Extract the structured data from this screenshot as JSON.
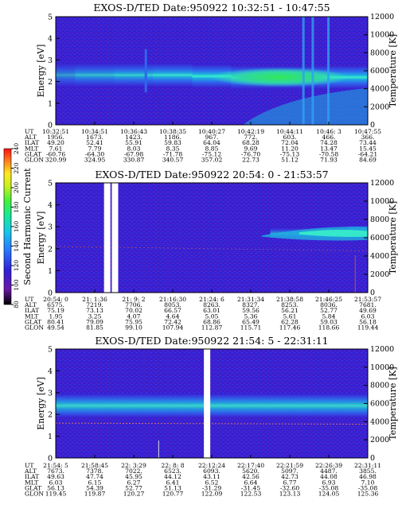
{
  "colors": {
    "background": "#3a1fd0",
    "band_core": "#38f0c8",
    "band_mid": "#1fb0e0",
    "band_outer": "#2f66ee",
    "hot_green": "#31e85a",
    "gap": "#ffffff"
  },
  "colorbar": {
    "label": "Second Harmonic Current",
    "ticks": [
      "80",
      "100",
      "120",
      "140",
      "160",
      "180",
      "200",
      "220",
      "240"
    ],
    "colors": [
      "#000000",
      "#6a1aa8",
      "#3020d8",
      "#2878ff",
      "#18c8e8",
      "#18e898",
      "#40f040",
      "#c8f020",
      "#ffe820",
      "#ff8020",
      "#ff1010"
    ]
  },
  "panels": [
    {
      "title": "EXOS-D/TED   Date:950922  10:32:51 - 10:47:55",
      "ylabel_left": "Energy [eV]",
      "ylabel_right": "Temperature [K]",
      "left_ticks": [
        "0",
        "1",
        "2",
        "3",
        "4",
        "5"
      ],
      "right_ticks": [
        "0",
        "2000",
        "4000",
        "6000",
        "8000",
        "10000",
        "12000"
      ],
      "gaps": [],
      "rows": [
        {
          "label": "UT",
          "values": [
            "10:32:51",
            "10:34:51",
            "10:36:43",
            "10:38:35",
            "10:40:27",
            "10:42:19",
            "10:44:11",
            "10:46: 3",
            "10:47:55"
          ]
        },
        {
          "label": "ALT",
          "values": [
            "1956.",
            "1673.",
            "1423.",
            "1186.",
            "967.",
            "772.",
            "603.",
            "466.",
            "366."
          ]
        },
        {
          "label": "ILAT",
          "values": [
            "49.20",
            "52.41",
            "55.91",
            "59.83",
            "64.04",
            "68.28",
            "72.04",
            "74.28",
            "73.44"
          ]
        },
        {
          "label": "MLT",
          "values": [
            "7.61",
            "7.79",
            "8.03",
            "8.35",
            "8.85",
            "9.69",
            "11.20",
            "13.47",
            "15.45"
          ]
        },
        {
          "label": "GLAT",
          "values": [
            "-60.76",
            "-64.30",
            "-67.98",
            "-71.78",
            "-75.12",
            "-76.70",
            "-75.13",
            "-70.58",
            "-64.21"
          ]
        },
        {
          "label": "GLON",
          "values": [
            "320.99",
            "324.95",
            "330.87",
            "340.57",
            "357.02",
            "22.73",
            "51.12",
            "71.93",
            "84.69"
          ]
        }
      ]
    },
    {
      "title": "EXOS-D/TED   Date:950922  20:54: 0 - 21:53:57",
      "ylabel_left": "Energy [eV]",
      "ylabel_right": "Temperature [K]",
      "left_ticks": [
        "0",
        "1",
        "2",
        "3",
        "4",
        "5"
      ],
      "right_ticks": [
        "0",
        "2000",
        "4000",
        "6000",
        "8000",
        "10000",
        "12000"
      ],
      "gaps": [
        0.165,
        0.19
      ],
      "rows": [
        {
          "label": "UT",
          "values": [
            "20:54: 0",
            "21: 1:36",
            "21: 9: 2",
            "21:16:30",
            "21:24: 6",
            "21:31:34",
            "21:38:58",
            "21:46:25",
            "21:53:57"
          ]
        },
        {
          "label": "ALT",
          "values": [
            "6575.",
            "7219.",
            "7706.",
            "8053.",
            "8263.",
            "8327.",
            "8253.",
            "8036.",
            "7681."
          ]
        },
        {
          "label": "ILAT",
          "values": [
            "75.19",
            "73.13",
            "70.02",
            "66.57",
            "63.01",
            "59.56",
            "56.21",
            "52.77",
            "49.69"
          ]
        },
        {
          "label": "MLT",
          "values": [
            "1.95",
            "3.25",
            "4.07",
            "4.64",
            "5.05",
            "5.36",
            "5.61",
            "5.84",
            "6.03"
          ]
        },
        {
          "label": "GLAT",
          "values": [
            "80.41",
            "79.09",
            "75.95",
            "72.42",
            "68.86",
            "65.49",
            "62.28",
            "59.03",
            "56.18"
          ]
        },
        {
          "label": "GLON",
          "values": [
            "49.54",
            "81.85",
            "99.10",
            "107.94",
            "112.87",
            "115.71",
            "117.46",
            "118.66",
            "119.44"
          ]
        }
      ]
    },
    {
      "title": "EXOS-D/TED   Date:950922  21:54: 5 - 22:31:11",
      "ylabel_left": "Energy [eV]",
      "ylabel_right": "Temperature [K]",
      "left_ticks": [
        "0",
        "1",
        "2",
        "3",
        "4",
        "5"
      ],
      "right_ticks": [
        "0",
        "2000",
        "4000",
        "6000",
        "8000",
        "10000",
        "12000"
      ],
      "gaps": [
        0.485
      ],
      "rows": [
        {
          "label": "UT",
          "values": [
            "21:54: 5",
            "21:58:45",
            "22: 3:29",
            "22: 8: 8",
            "22:12:24",
            "22:17:40",
            "22:21:59",
            "22:26:39",
            "22:31:11"
          ]
        },
        {
          "label": "ALT",
          "values": [
            "7673.",
            "7378.",
            "7022.",
            "6523.",
            "6093.",
            "5620.",
            "5097.",
            "4487.",
            "3855."
          ]
        },
        {
          "label": "ILAT",
          "values": [
            "49.63",
            "47.74",
            "45.95",
            "44.12",
            "43.11",
            "42.56",
            "42.73",
            "44.08",
            "46.98"
          ]
        },
        {
          "label": "MLT",
          "values": [
            "6.03",
            "6.15",
            "6.27",
            "6.41",
            "6.52",
            "6.64",
            "6.77",
            "6.93",
            "7.10"
          ]
        },
        {
          "label": "GLAT",
          "values": [
            "56.13",
            "54.39",
            "52.77",
            "51.13",
            "-31.29",
            "-31.45",
            "-32.60",
            "-35.08",
            "-35.08"
          ]
        },
        {
          "label": "GLON",
          "values": [
            "119.45",
            "119.87",
            "120.27",
            "120.77",
            "122.09",
            "122.53",
            "123.13",
            "124.05",
            "125.36"
          ]
        }
      ]
    }
  ],
  "chart_data": [
    {
      "type": "heatmap",
      "title": "EXOS-D/TED   Date:950922  10:32:51 - 10:47:55",
      "xlabel": "",
      "ylabel": "Energy [eV]",
      "y2label": "Temperature [K]",
      "ylim": [
        0,
        5
      ],
      "y2lim": [
        0,
        12000
      ],
      "x_categories": [
        "10:32:51",
        "10:34:51",
        "10:36:43",
        "10:38:35",
        "10:40:27",
        "10:42:19",
        "10:44:11",
        "10:46: 3",
        "10:47:55"
      ],
      "band_center_eV": [
        2.3,
        2.3,
        2.3,
        2.3,
        2.25,
        2.2,
        2.2,
        2.2,
        2.2
      ],
      "band_peak_level": [
        120,
        140,
        150,
        160,
        180,
        200,
        210,
        200,
        180
      ],
      "colorbar_range": [
        80,
        240
      ]
    },
    {
      "type": "heatmap",
      "title": "EXOS-D/TED   Date:950922  20:54: 0 - 21:53:57",
      "xlabel": "",
      "ylabel": "Energy [eV]",
      "y2label": "Temperature [K]",
      "ylim": [
        0,
        5
      ],
      "y2lim": [
        0,
        12000
      ],
      "x_categories": [
        "20:54: 0",
        "21: 1:36",
        "21: 9: 2",
        "21:16:30",
        "21:24: 6",
        "21:31:34",
        "21:38:58",
        "21:46:25",
        "21:53:57"
      ],
      "band_center_eV": [
        null,
        null,
        null,
        null,
        null,
        null,
        2.7,
        2.7,
        2.8
      ],
      "band_peak_level": [
        100,
        100,
        100,
        100,
        100,
        105,
        120,
        135,
        140
      ],
      "colorbar_range": [
        80,
        240
      ]
    },
    {
      "type": "heatmap",
      "title": "EXOS-D/TED   Date:950922  21:54: 5 - 22:31:11",
      "xlabel": "",
      "ylabel": "Energy [eV]",
      "y2label": "Temperature [K]",
      "ylim": [
        0,
        5
      ],
      "y2lim": [
        0,
        12000
      ],
      "x_categories": [
        "21:54: 5",
        "21:58:45",
        "22: 3:29",
        "22: 8: 8",
        "22:12:24",
        "22:17:40",
        "22:21:59",
        "22:26:39",
        "22:31:11"
      ],
      "band_center_eV": [
        2.4,
        2.4,
        2.4,
        2.4,
        2.4,
        2.4,
        2.4,
        2.4,
        2.4
      ],
      "band_peak_level": [
        150,
        150,
        150,
        150,
        150,
        150,
        150,
        150,
        150
      ],
      "colorbar_range": [
        80,
        240
      ]
    }
  ]
}
